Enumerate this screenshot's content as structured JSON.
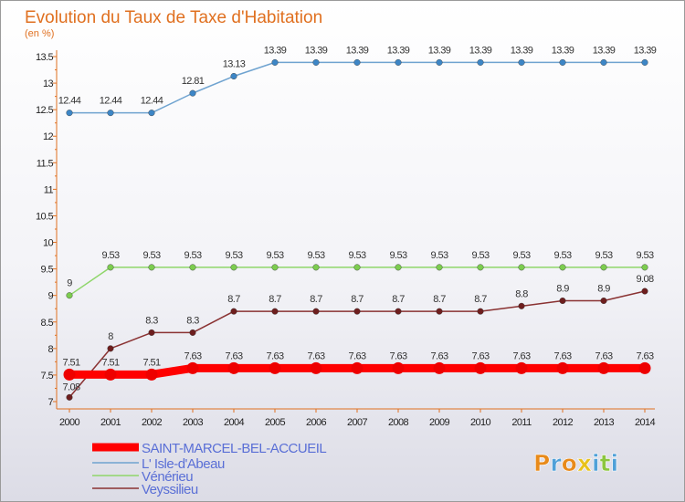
{
  "chart_data": {
    "type": "line",
    "title": "Evolution du Taux de Taxe d'Habitation",
    "ylabel": "(en %)",
    "xlabel": "",
    "x": [
      "2000",
      "2001",
      "2002",
      "2003",
      "2004",
      "2005",
      "2006",
      "2007",
      "2008",
      "2009",
      "2010",
      "2011",
      "2012",
      "2013",
      "2014"
    ],
    "ylim": [
      7,
      13.5
    ],
    "yticks": [
      "7",
      "7.5",
      "8",
      "8.5",
      "9",
      "9.5",
      "10",
      "10.5",
      "11",
      "11.5",
      "12",
      "12.5",
      "13",
      "13.5"
    ],
    "grid": false,
    "legend_position": "bottom-left",
    "series": [
      {
        "name": "SAINT-MARCEL-BEL-ACCUEIL",
        "color": "#ff0000",
        "marker_color": "#ee0000",
        "values": [
          7.51,
          7.51,
          7.51,
          7.63,
          7.63,
          7.63,
          7.63,
          7.63,
          7.63,
          7.63,
          7.63,
          7.63,
          7.63,
          7.63,
          7.63
        ],
        "labels": [
          "7.51",
          "7.51",
          "7.51",
          "7.63",
          "7.63",
          "7.63",
          "7.63",
          "7.63",
          "7.63",
          "7.63",
          "7.63",
          "7.63",
          "7.63",
          "7.63",
          "7.63"
        ]
      },
      {
        "name": "L' Isle-d'Abeau",
        "color": "#6fa3d0",
        "marker_color": "#3d86c6",
        "values": [
          12.44,
          12.44,
          12.44,
          12.81,
          13.13,
          13.39,
          13.39,
          13.39,
          13.39,
          13.39,
          13.39,
          13.39,
          13.39,
          13.39,
          13.39
        ],
        "labels": [
          "12.44",
          "12.44",
          "12.44",
          "12.81",
          "13.13",
          "13.39",
          "13.39",
          "13.39",
          "13.39",
          "13.39",
          "13.39",
          "13.39",
          "13.39",
          "13.39",
          "13.39"
        ]
      },
      {
        "name": "Vénérieu",
        "color": "#8fd66a",
        "marker_color": "#7ccc4f",
        "values": [
          9,
          9.53,
          9.53,
          9.53,
          9.53,
          9.53,
          9.53,
          9.53,
          9.53,
          9.53,
          9.53,
          9.53,
          9.53,
          9.53,
          9.53
        ],
        "labels": [
          "9",
          "9.53",
          "9.53",
          "9.53",
          "9.53",
          "9.53",
          "9.53",
          "9.53",
          "9.53",
          "9.53",
          "9.53",
          "9.53",
          "9.53",
          "9.53",
          "9.53"
        ]
      },
      {
        "name": "Veyssilieu",
        "color": "#8a3232",
        "marker_color": "#6e1e1e",
        "values": [
          7.08,
          8,
          8.3,
          8.3,
          8.7,
          8.7,
          8.7,
          8.7,
          8.7,
          8.7,
          8.7,
          8.8,
          8.9,
          8.9,
          9.08
        ],
        "labels": [
          "7.08",
          "8",
          "8.3",
          "8.3",
          "8.7",
          "8.7",
          "8.7",
          "8.7",
          "8.7",
          "8.7",
          "8.7",
          "8.8",
          "8.9",
          "8.9",
          "9.08"
        ]
      }
    ]
  },
  "title_color": "#e07020",
  "axis_color": "#e07020",
  "logo": {
    "text": "Proxiti",
    "colors": [
      "#e88a1a",
      "#4fa0d8",
      "#e88a1a",
      "#e8c21a",
      "#4fa0d8",
      "#8cc63f",
      "#4fa0d8"
    ]
  }
}
